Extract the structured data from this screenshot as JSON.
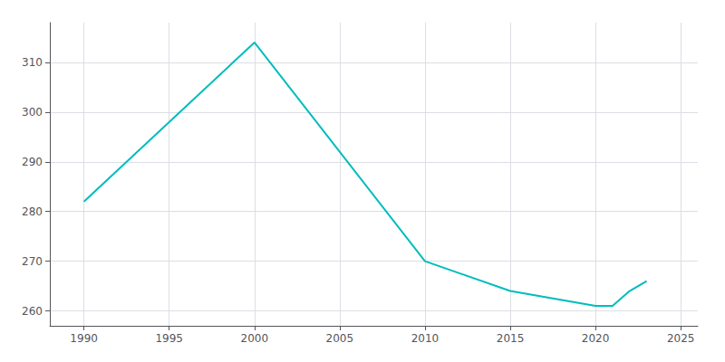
{
  "chart_data": {
    "type": "line",
    "x": [
      1990,
      2000,
      2010,
      2015,
      2020,
      2021,
      2022,
      2023
    ],
    "values": [
      282,
      314,
      270,
      264,
      261,
      261,
      264,
      266
    ],
    "color": "#00BCBE",
    "xlim": [
      1988,
      2026
    ],
    "ylim": [
      257,
      318
    ],
    "xticks": [
      1990,
      1995,
      2000,
      2005,
      2010,
      2015,
      2020,
      2025
    ],
    "yticks": [
      260,
      270,
      280,
      290,
      300,
      310
    ],
    "grid": true
  }
}
